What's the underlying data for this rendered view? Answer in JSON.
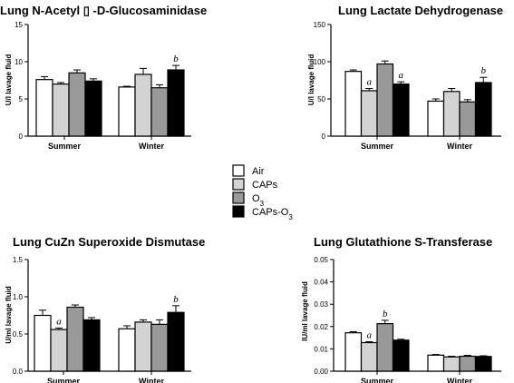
{
  "legend": {
    "items": [
      {
        "label": "Air",
        "sub": "",
        "suffix": "",
        "color": "#ffffff"
      },
      {
        "label": "CAPs",
        "sub": "",
        "suffix": "",
        "color": "#d3d3d3"
      },
      {
        "label": "O",
        "sub": "3",
        "suffix": "",
        "color": "#999999"
      },
      {
        "label": "CAPs-O",
        "sub": "3",
        "suffix": "",
        "color": "#000000"
      }
    ]
  },
  "chart_data": [
    {
      "type": "bar",
      "title": "Lung N-Acetyl ▯ -D-Glucosaminidase",
      "ylabel": "U/l lavage fluid",
      "ylim": [
        0,
        15
      ],
      "yticks": [
        "0",
        "5",
        "10",
        "15"
      ],
      "categories": [
        "Summer",
        "Winter"
      ],
      "series": [
        {
          "name": "Air",
          "values": [
            7.6,
            6.6
          ],
          "errors": [
            0.4,
            0.1
          ],
          "annotations": [
            "",
            ""
          ]
        },
        {
          "name": "CAPs",
          "values": [
            7.0,
            8.3
          ],
          "errors": [
            0.2,
            0.8
          ],
          "annotations": [
            "",
            ""
          ]
        },
        {
          "name": "O3",
          "values": [
            8.5,
            6.5
          ],
          "errors": [
            0.4,
            0.4
          ],
          "annotations": [
            "",
            ""
          ]
        },
        {
          "name": "CAPs-O3",
          "values": [
            7.4,
            8.9
          ],
          "errors": [
            0.3,
            0.6
          ],
          "annotations": [
            "",
            "b"
          ]
        }
      ]
    },
    {
      "type": "bar",
      "title": "Lung Lactate Dehydrogenase",
      "ylabel": "U/l lavage fluid",
      "ylim": [
        0,
        150
      ],
      "yticks": [
        "0",
        "50",
        "100",
        "150"
      ],
      "categories": [
        "Summer",
        "Winter"
      ],
      "series": [
        {
          "name": "Air",
          "values": [
            87,
            47
          ],
          "errors": [
            2,
            3
          ],
          "annotations": [
            "",
            ""
          ]
        },
        {
          "name": "CAPs",
          "values": [
            61,
            60
          ],
          "errors": [
            3,
            4
          ],
          "annotations": [
            "a",
            ""
          ]
        },
        {
          "name": "O3",
          "values": [
            97,
            46
          ],
          "errors": [
            4,
            3
          ],
          "annotations": [
            "",
            ""
          ]
        },
        {
          "name": "CAPs-O3",
          "values": [
            70,
            72
          ],
          "errors": [
            3,
            7
          ],
          "annotations": [
            "a",
            "b"
          ]
        }
      ]
    },
    {
      "type": "bar",
      "title": "Lung CuZn Superoxide Dismutase",
      "ylabel": "U/ml lavage fluid",
      "ylim": [
        0,
        1.5
      ],
      "yticks": [
        "0.0",
        "0.5",
        "1.0",
        "1.5"
      ],
      "categories": [
        "Summer",
        "Winter"
      ],
      "series": [
        {
          "name": "Air",
          "values": [
            0.75,
            0.57
          ],
          "errors": [
            0.07,
            0.04
          ],
          "annotations": [
            "",
            ""
          ]
        },
        {
          "name": "CAPs",
          "values": [
            0.56,
            0.66
          ],
          "errors": [
            0.02,
            0.03
          ],
          "annotations": [
            "a",
            ""
          ]
        },
        {
          "name": "O3",
          "values": [
            0.86,
            0.63
          ],
          "errors": [
            0.03,
            0.06
          ],
          "annotations": [
            "",
            ""
          ]
        },
        {
          "name": "CAPs-O3",
          "values": [
            0.69,
            0.79
          ],
          "errors": [
            0.03,
            0.09
          ],
          "annotations": [
            "",
            "b"
          ]
        }
      ]
    },
    {
      "type": "bar",
      "title": "Lung Glutathione S-Transferase",
      "ylabel": "IU/ml lavage fluid",
      "ylim": [
        0,
        0.05
      ],
      "yticks": [
        "0.00",
        "0.01",
        "0.02",
        "0.03",
        "0.04",
        "0.05"
      ],
      "categories": [
        "Summer",
        "Winter"
      ],
      "series": [
        {
          "name": "Air",
          "values": [
            0.0172,
            0.0072
          ],
          "errors": [
            0.0005,
            0.0003
          ],
          "annotations": [
            "",
            ""
          ]
        },
        {
          "name": "CAPs",
          "values": [
            0.0128,
            0.0064
          ],
          "errors": [
            0.0004,
            0.0003
          ],
          "annotations": [
            "a",
            ""
          ]
        },
        {
          "name": "O3",
          "values": [
            0.0213,
            0.0067
          ],
          "errors": [
            0.0015,
            0.0004
          ],
          "annotations": [
            "b",
            ""
          ]
        },
        {
          "name": "CAPs-O3",
          "values": [
            0.0139,
            0.0066
          ],
          "errors": [
            0.0004,
            0.0003
          ],
          "annotations": [
            "",
            ""
          ]
        }
      ]
    }
  ]
}
